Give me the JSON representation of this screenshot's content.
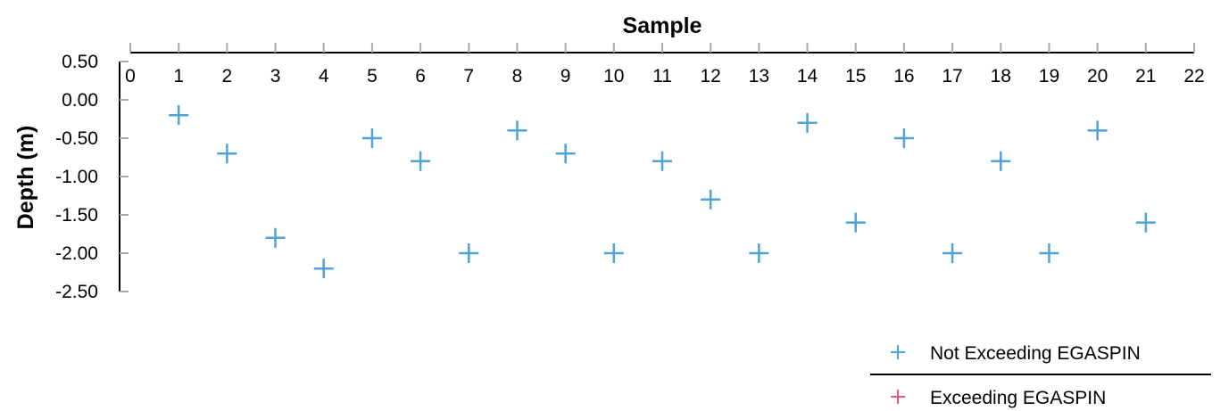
{
  "chart_data": {
    "type": "scatter",
    "xlabel": "Sample",
    "ylabel": "Depth (m)",
    "x_axis_position": "top",
    "xlim": [
      0,
      22
    ],
    "ylim": [
      -2.5,
      0.5
    ],
    "x_ticks": [
      "0",
      "1",
      "2",
      "3",
      "4",
      "5",
      "6",
      "7",
      "8",
      "9",
      "10",
      "11",
      "12",
      "13",
      "14",
      "15",
      "16",
      "17",
      "18",
      "19",
      "20",
      "21",
      "22"
    ],
    "y_ticks": [
      "0.50",
      "0.00",
      "-0.50",
      "-1.00",
      "-1.50",
      "-2.00",
      "-2.50"
    ],
    "marker": "+",
    "legend_position": "bottom-right",
    "series": [
      {
        "name": "Not Exceeding EGASPIN",
        "color": "#4fa3d8",
        "x": [
          1,
          2,
          3,
          4,
          5,
          6,
          7,
          8,
          9,
          10,
          11,
          12,
          13,
          14,
          15,
          16,
          17,
          18,
          19,
          20,
          21
        ],
        "y": [
          -0.2,
          -0.7,
          -1.8,
          -2.2,
          -0.5,
          -0.8,
          -2.0,
          -0.4,
          -0.7,
          -2.0,
          -0.8,
          -1.3,
          -2.0,
          -0.3,
          -1.6,
          -0.5,
          -2.0,
          -0.8,
          -2.0,
          -0.4,
          -1.6
        ]
      },
      {
        "name": "Exceeding EGASPIN",
        "color": "#e45a6e",
        "x": [],
        "y": []
      }
    ]
  }
}
